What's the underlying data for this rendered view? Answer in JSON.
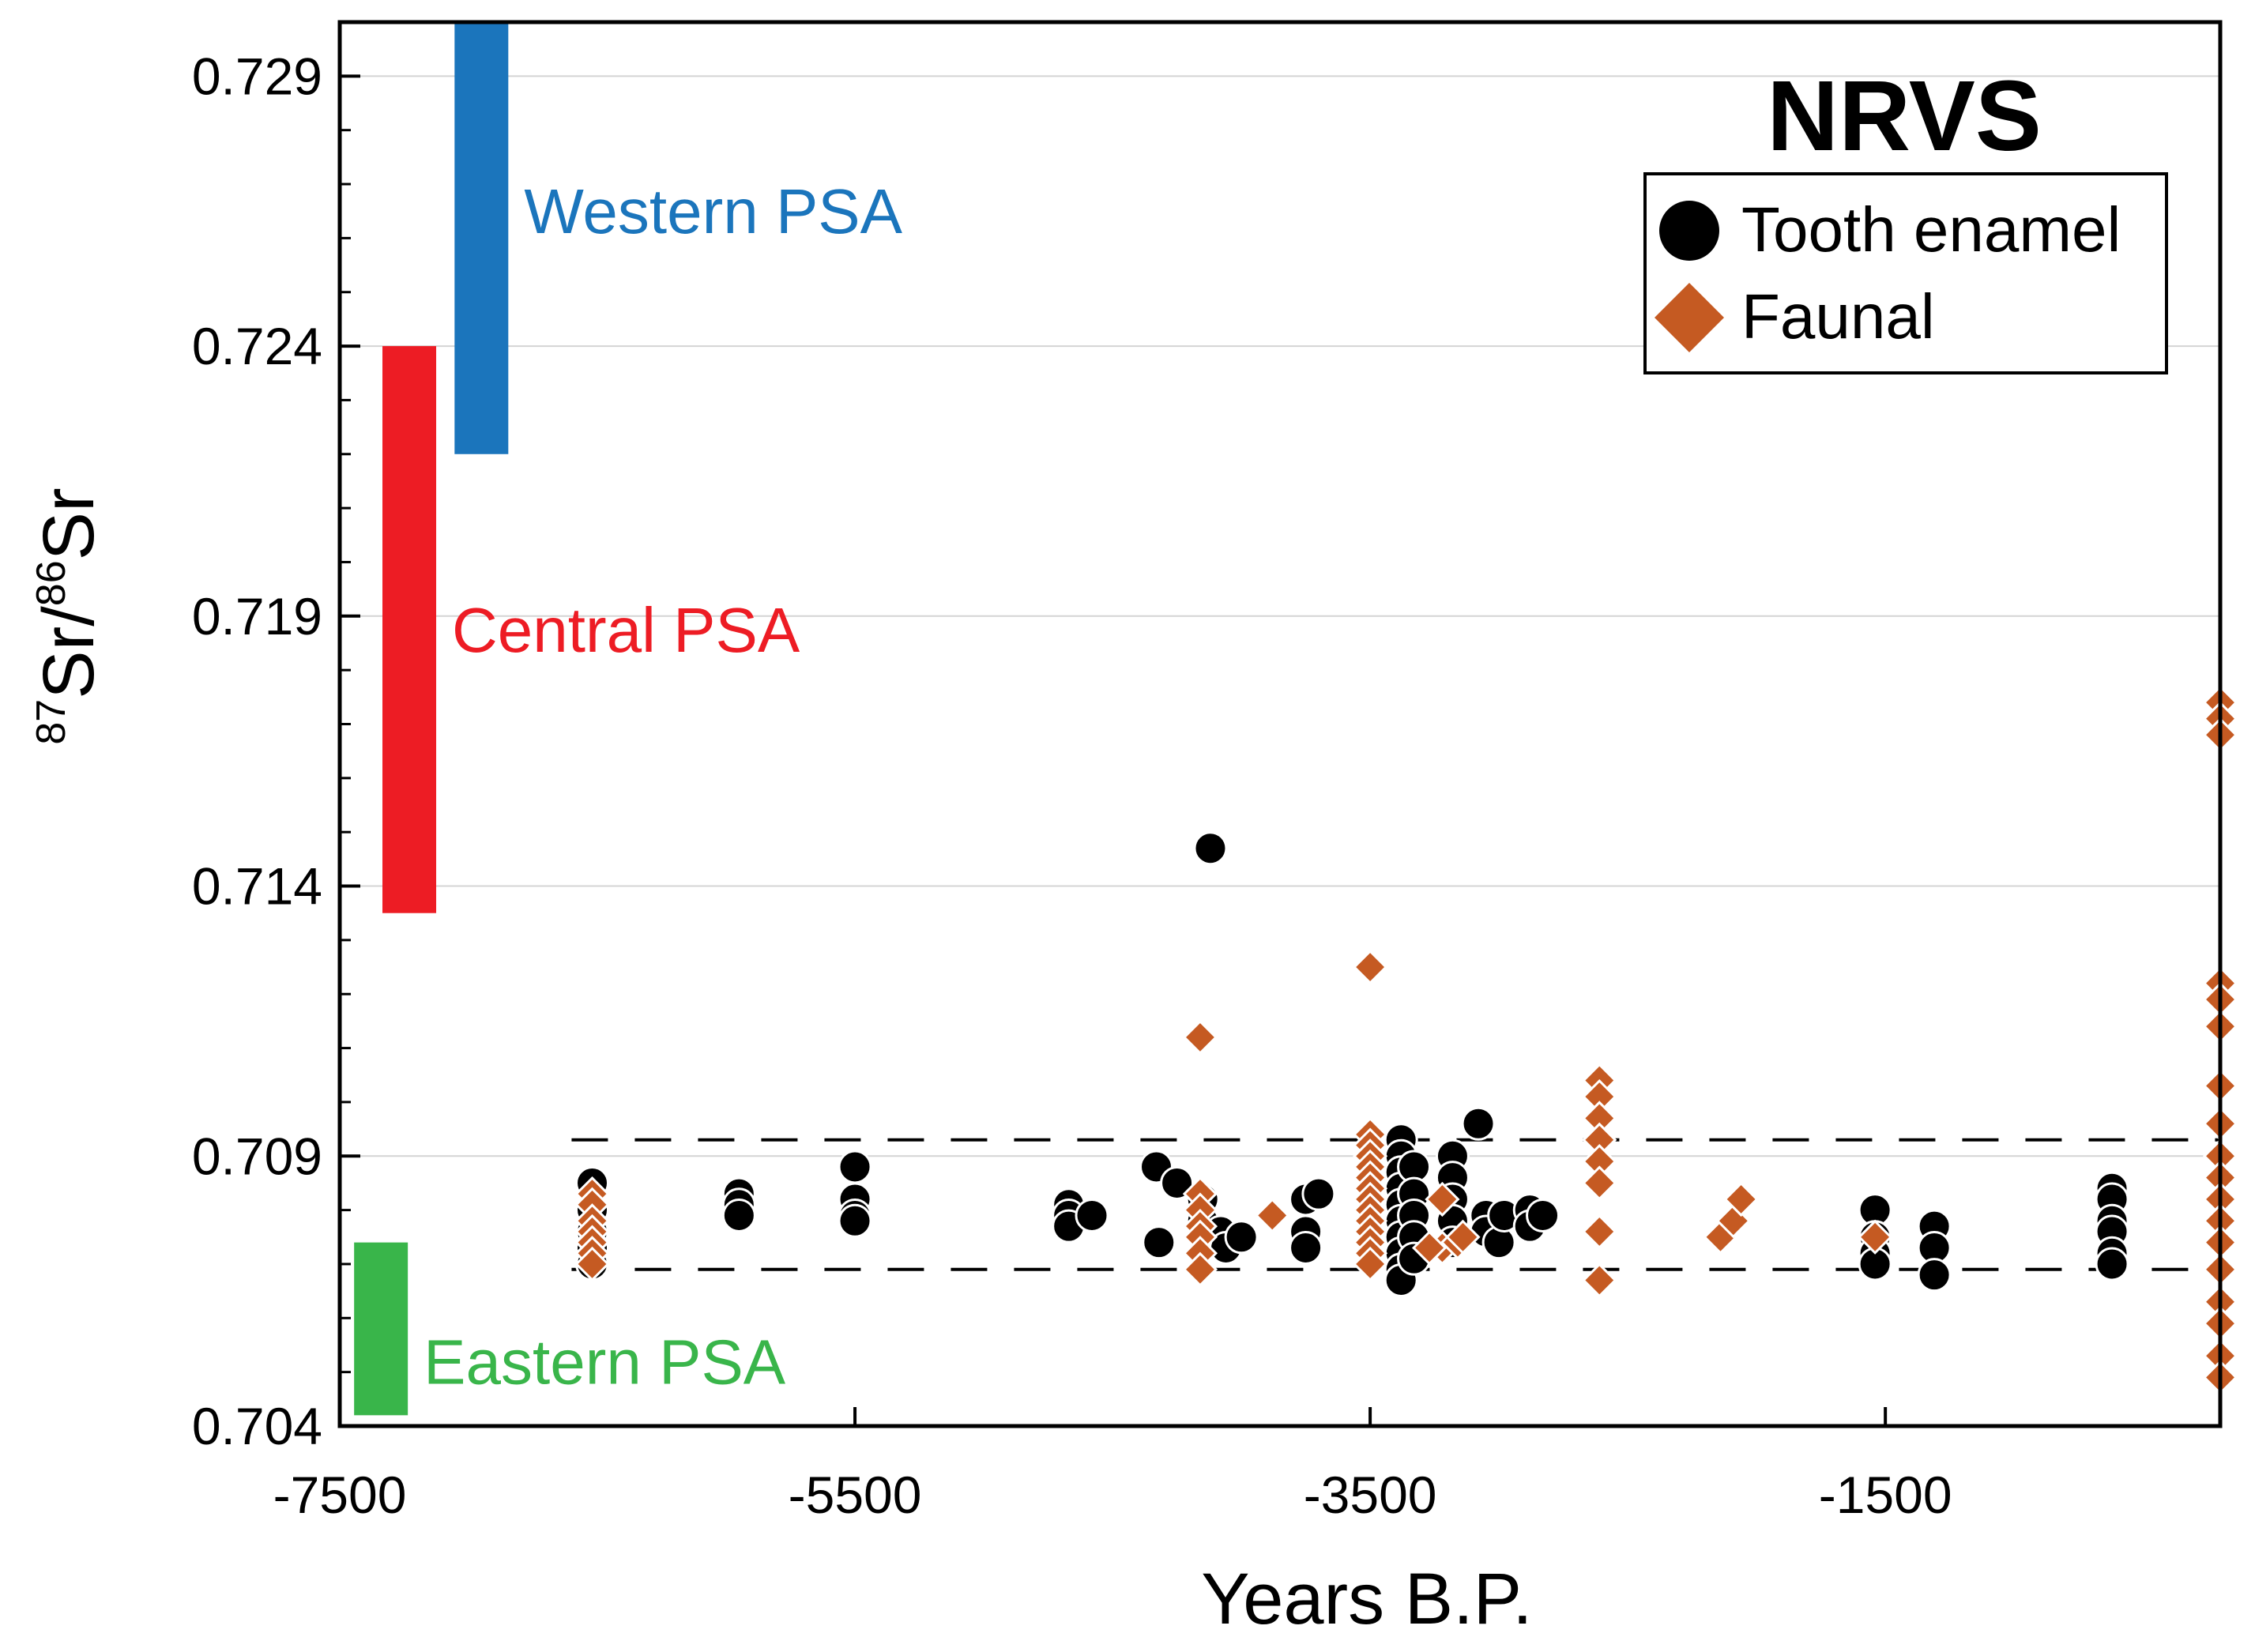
{
  "chart_data": {
    "type": "scatter",
    "title": "NRVS",
    "xlabel": "Years B.P.",
    "ylabel": {
      "sup1": "87",
      "base1": "Sr/",
      "sup2": "86",
      "base2": "Sr"
    },
    "xlim": [
      -7500,
      -200
    ],
    "ylim": [
      0.704,
      0.73
    ],
    "xticks": [
      -7500,
      -5500,
      -3500,
      -1500
    ],
    "xtick_labels": [
      "-7500",
      "-5500",
      "-3500",
      "-1500"
    ],
    "yticks": [
      0.704,
      0.709,
      0.714,
      0.719,
      0.724,
      0.729
    ],
    "ytick_labels": [
      "0.704",
      "0.709",
      "0.714",
      "0.719",
      "0.724",
      "0.729"
    ],
    "grid": "horizontal",
    "legend_position": "top-right",
    "reference_lines": [
      0.7093,
      0.7069
    ],
    "ranges": [
      {
        "name": "Western PSA",
        "x": -6950,
        "ymin": 0.722,
        "ymax": 0.73,
        "color": "#1b75bc"
      },
      {
        "name": "Central PSA",
        "x": -7230,
        "ymin": 0.7135,
        "ymax": 0.724,
        "color": "#ed1c24"
      },
      {
        "name": "Eastern PSA",
        "x": -7340,
        "ymin": 0.7042,
        "ymax": 0.7074,
        "color": "#39b54a"
      }
    ],
    "series": [
      {
        "name": "Tooth enamel",
        "marker": "circle",
        "color": "#000000",
        "points": [
          [
            -6520,
            0.7085
          ],
          [
            -6520,
            0.708
          ],
          [
            -6520,
            0.7076
          ],
          [
            -6520,
            0.7073
          ],
          [
            -6520,
            0.707
          ],
          [
            -5950,
            0.7083
          ],
          [
            -5950,
            0.7081
          ],
          [
            -5950,
            0.7079
          ],
          [
            -5500,
            0.7088
          ],
          [
            -5500,
            0.7082
          ],
          [
            -5500,
            0.7079
          ],
          [
            -5500,
            0.7078
          ],
          [
            -4670,
            0.7081
          ],
          [
            -4670,
            0.7079
          ],
          [
            -4670,
            0.7077
          ],
          [
            -4580,
            0.7079
          ],
          [
            -4330,
            0.7088
          ],
          [
            -4250,
            0.7085
          ],
          [
            -4320,
            0.7074
          ],
          [
            -4120,
            0.7147
          ],
          [
            -4150,
            0.7082
          ],
          [
            -4150,
            0.7078
          ],
          [
            -4130,
            0.7075
          ],
          [
            -4080,
            0.7076
          ],
          [
            -4060,
            0.7073
          ],
          [
            -4000,
            0.7075
          ],
          [
            -3750,
            0.7082
          ],
          [
            -3750,
            0.7076
          ],
          [
            -3750,
            0.7073
          ],
          [
            -3700,
            0.7083
          ],
          [
            -3380,
            0.7093
          ],
          [
            -3380,
            0.709
          ],
          [
            -3380,
            0.7087
          ],
          [
            -3380,
            0.7084
          ],
          [
            -3380,
            0.7081
          ],
          [
            -3380,
            0.7078
          ],
          [
            -3380,
            0.7075
          ],
          [
            -3380,
            0.7072
          ],
          [
            -3380,
            0.7069
          ],
          [
            -3380,
            0.7067
          ],
          [
            -3330,
            0.7088
          ],
          [
            -3330,
            0.7083
          ],
          [
            -3330,
            0.7079
          ],
          [
            -3330,
            0.7075
          ],
          [
            -3330,
            0.7071
          ],
          [
            -3180,
            0.709
          ],
          [
            -3180,
            0.7086
          ],
          [
            -3180,
            0.7082
          ],
          [
            -3180,
            0.7078
          ],
          [
            -3180,
            0.7074
          ],
          [
            -3080,
            0.7096
          ],
          [
            -3050,
            0.7079
          ],
          [
            -3050,
            0.7076
          ],
          [
            -3000,
            0.7074
          ],
          [
            -2980,
            0.7079
          ],
          [
            -2880,
            0.708
          ],
          [
            -2880,
            0.7077
          ],
          [
            -2830,
            0.7079
          ],
          [
            -1540,
            0.708
          ],
          [
            -1540,
            0.7075
          ],
          [
            -1540,
            0.7072
          ],
          [
            -1540,
            0.707
          ],
          [
            -1310,
            0.7077
          ],
          [
            -1310,
            0.7073
          ],
          [
            -1310,
            0.7068
          ],
          [
            -620,
            0.7084
          ],
          [
            -620,
            0.7082
          ],
          [
            -620,
            0.7078
          ],
          [
            -620,
            0.7076
          ],
          [
            -620,
            0.7072
          ],
          [
            -620,
            0.707
          ]
        ]
      },
      {
        "name": "Faunal",
        "marker": "diamond",
        "color": "#c55a22",
        "points": [
          [
            -6520,
            0.7083
          ],
          [
            -6520,
            0.7081
          ],
          [
            -6520,
            0.7078
          ],
          [
            -6520,
            0.7076
          ],
          [
            -6520,
            0.7074
          ],
          [
            -6520,
            0.7072
          ],
          [
            -6520,
            0.707
          ],
          [
            -4160,
            0.7112
          ],
          [
            -4160,
            0.7083
          ],
          [
            -4160,
            0.708
          ],
          [
            -4160,
            0.7077
          ],
          [
            -4160,
            0.7075
          ],
          [
            -4160,
            0.7072
          ],
          [
            -4160,
            0.7069
          ],
          [
            -3880,
            0.7079
          ],
          [
            -3500,
            0.7125
          ],
          [
            -3500,
            0.7094
          ],
          [
            -3500,
            0.7092
          ],
          [
            -3500,
            0.709
          ],
          [
            -3500,
            0.7088
          ],
          [
            -3500,
            0.7086
          ],
          [
            -3500,
            0.7084
          ],
          [
            -3500,
            0.7082
          ],
          [
            -3500,
            0.708
          ],
          [
            -3500,
            0.7078
          ],
          [
            -3500,
            0.7076
          ],
          [
            -3500,
            0.7074
          ],
          [
            -3500,
            0.7072
          ],
          [
            -3500,
            0.707
          ],
          [
            -3220,
            0.7082
          ],
          [
            -3220,
            0.7073
          ],
          [
            -3160,
            0.7074
          ],
          [
            -3140,
            0.7075
          ],
          [
            -3270,
            0.7073
          ],
          [
            -2610,
            0.7104
          ],
          [
            -2610,
            0.7101
          ],
          [
            -2610,
            0.7097
          ],
          [
            -2610,
            0.7093
          ],
          [
            -2610,
            0.7089
          ],
          [
            -2610,
            0.7085
          ],
          [
            -2610,
            0.7076
          ],
          [
            -2610,
            0.7067
          ],
          [
            -2140,
            0.7075
          ],
          [
            -2090,
            0.7078
          ],
          [
            -2060,
            0.7082
          ],
          [
            -1540,
            0.7075
          ],
          [
            -200,
            0.7174
          ],
          [
            -200,
            0.7171
          ],
          [
            -200,
            0.7168
          ],
          [
            -200,
            0.7122
          ],
          [
            -200,
            0.7119
          ],
          [
            -200,
            0.7114
          ],
          [
            -200,
            0.7103
          ],
          [
            -200,
            0.7096
          ],
          [
            -200,
            0.709
          ],
          [
            -200,
            0.7086
          ],
          [
            -200,
            0.7082
          ],
          [
            -200,
            0.7078
          ],
          [
            -200,
            0.7074
          ],
          [
            -200,
            0.7069
          ],
          [
            -200,
            0.7063
          ],
          [
            -200,
            0.7059
          ],
          [
            -200,
            0.7053
          ],
          [
            -200,
            0.7049
          ]
        ]
      }
    ]
  }
}
